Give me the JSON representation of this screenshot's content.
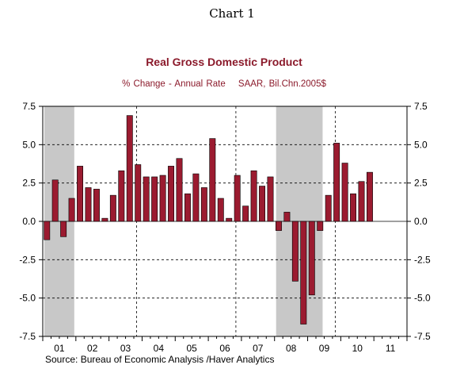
{
  "page_label": "Chart 1",
  "chart_data": {
    "type": "bar",
    "title": "Real Gross Domestic Product",
    "subtitle": "% Change - Annual Rate",
    "subtitle_note": "SAAR, Bil.Chn.2005$",
    "source": "Source:  Bureau of Economic Analysis /Haver Analytics",
    "bar_color": "#9b1b30",
    "recession_color": "#c8c8c8",
    "x_tick_labels": [
      "01",
      "02",
      "03",
      "04",
      "05",
      "06",
      "07",
      "08",
      "09",
      "10",
      "11"
    ],
    "y_ticks": [
      "7.5",
      "5.0",
      "2.5",
      "0.0",
      "-2.5",
      "-5.0",
      "-7.5"
    ],
    "y_tick_values": [
      7.5,
      5.0,
      2.5,
      0.0,
      -2.5,
      -5.0,
      -7.5
    ],
    "ylim": [
      -7.5,
      7.5
    ],
    "grid": "dashed, major year/value lines",
    "x": [
      "2001Q1",
      "2001Q2",
      "2001Q3",
      "2001Q4",
      "2002Q1",
      "2002Q2",
      "2002Q3",
      "2002Q4",
      "2003Q1",
      "2003Q2",
      "2003Q3",
      "2003Q4",
      "2004Q1",
      "2004Q2",
      "2004Q3",
      "2004Q4",
      "2005Q1",
      "2005Q2",
      "2005Q3",
      "2005Q4",
      "2006Q1",
      "2006Q2",
      "2006Q3",
      "2006Q4",
      "2007Q1",
      "2007Q2",
      "2007Q3",
      "2007Q4",
      "2008Q1",
      "2008Q2",
      "2008Q3",
      "2008Q4",
      "2009Q1",
      "2009Q2",
      "2009Q3",
      "2009Q4",
      "2010Q1",
      "2010Q2",
      "2010Q3",
      "2010Q4"
    ],
    "values": [
      -1.2,
      2.7,
      -1.0,
      1.5,
      3.6,
      2.2,
      2.1,
      0.2,
      1.7,
      3.3,
      6.9,
      3.7,
      2.9,
      2.9,
      3.0,
      3.6,
      4.1,
      1.8,
      3.1,
      2.2,
      5.4,
      1.5,
      0.2,
      3.0,
      1.0,
      3.3,
      2.3,
      2.9,
      -0.6,
      0.6,
      -3.9,
      -6.7,
      -4.8,
      -0.6,
      1.7,
      5.1,
      3.8,
      1.8,
      2.6,
      3.2
    ],
    "recession_shading": [
      [
        "2001Q1",
        "2001Q4"
      ],
      [
        "2008Q1",
        "2009Q2"
      ]
    ]
  }
}
